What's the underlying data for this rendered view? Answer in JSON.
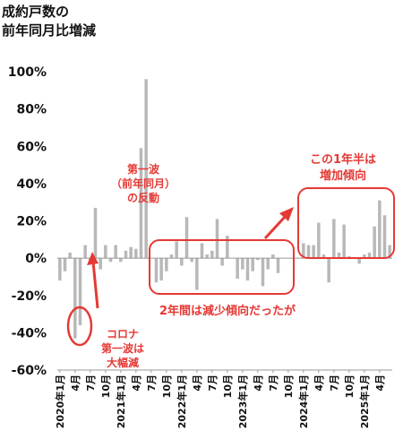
{
  "chart_data": {
    "type": "bar",
    "title_lines": [
      "成約戸数の",
      "前年同月比増減"
    ],
    "ylim": [
      -60,
      100
    ],
    "yticks": [
      "100%",
      "80%",
      "60%",
      "40%",
      "20%",
      "0%",
      "-20%",
      "-40%",
      "-60%"
    ],
    "ytick_values": [
      100,
      80,
      60,
      40,
      20,
      0,
      -20,
      -40,
      -60
    ],
    "grid": false,
    "bar_color": "#b8b8b8",
    "accent_color": "#e53935",
    "x_labels": [
      {
        "index": 0,
        "label": "2020年1月"
      },
      {
        "index": 3,
        "label": "4月"
      },
      {
        "index": 6,
        "label": "7月"
      },
      {
        "index": 9,
        "label": "10月"
      },
      {
        "index": 12,
        "label": "2021年1月"
      },
      {
        "index": 15,
        "label": "4月"
      },
      {
        "index": 18,
        "label": "7月"
      },
      {
        "index": 21,
        "label": "10月"
      },
      {
        "index": 24,
        "label": "2022年1月"
      },
      {
        "index": 27,
        "label": "4月"
      },
      {
        "index": 30,
        "label": "7月"
      },
      {
        "index": 33,
        "label": "10月"
      },
      {
        "index": 36,
        "label": "2023年1月"
      },
      {
        "index": 39,
        "label": "4月"
      },
      {
        "index": 42,
        "label": "7月"
      },
      {
        "index": 45,
        "label": "10月"
      },
      {
        "index": 48,
        "label": "2024年1月"
      },
      {
        "index": 51,
        "label": "4月"
      },
      {
        "index": 54,
        "label": "7月"
      },
      {
        "index": 57,
        "label": "10月"
      },
      {
        "index": 60,
        "label": "2025年1月"
      },
      {
        "index": 63,
        "label": "4月"
      }
    ],
    "values": [
      -12,
      -7,
      3,
      -43,
      -36,
      7,
      -3,
      27,
      -6,
      7,
      -2,
      7,
      -2,
      4,
      6,
      5,
      59,
      96,
      0,
      -13,
      -12,
      -7,
      2,
      9,
      -4,
      22,
      -2,
      -17,
      8,
      2,
      4,
      21,
      -4,
      12,
      0,
      -11,
      -6,
      -12,
      -7,
      -1,
      -15,
      -6,
      2,
      -8,
      0,
      0,
      0,
      0,
      8,
      7,
      7,
      19,
      2,
      -13,
      21,
      3,
      18,
      1,
      0,
      -3,
      2,
      3,
      17,
      31,
      23,
      7
    ]
  },
  "annotations": {
    "rebound_lines": [
      "第一波",
      "（前年同月）",
      "の反動"
    ],
    "covid_lines": [
      "コロナ",
      "第一波は",
      "大幅減"
    ],
    "decline_text": "2年間は減少傾向だったが",
    "increase_lines": [
      "この1年半は",
      "増加傾向"
    ]
  }
}
